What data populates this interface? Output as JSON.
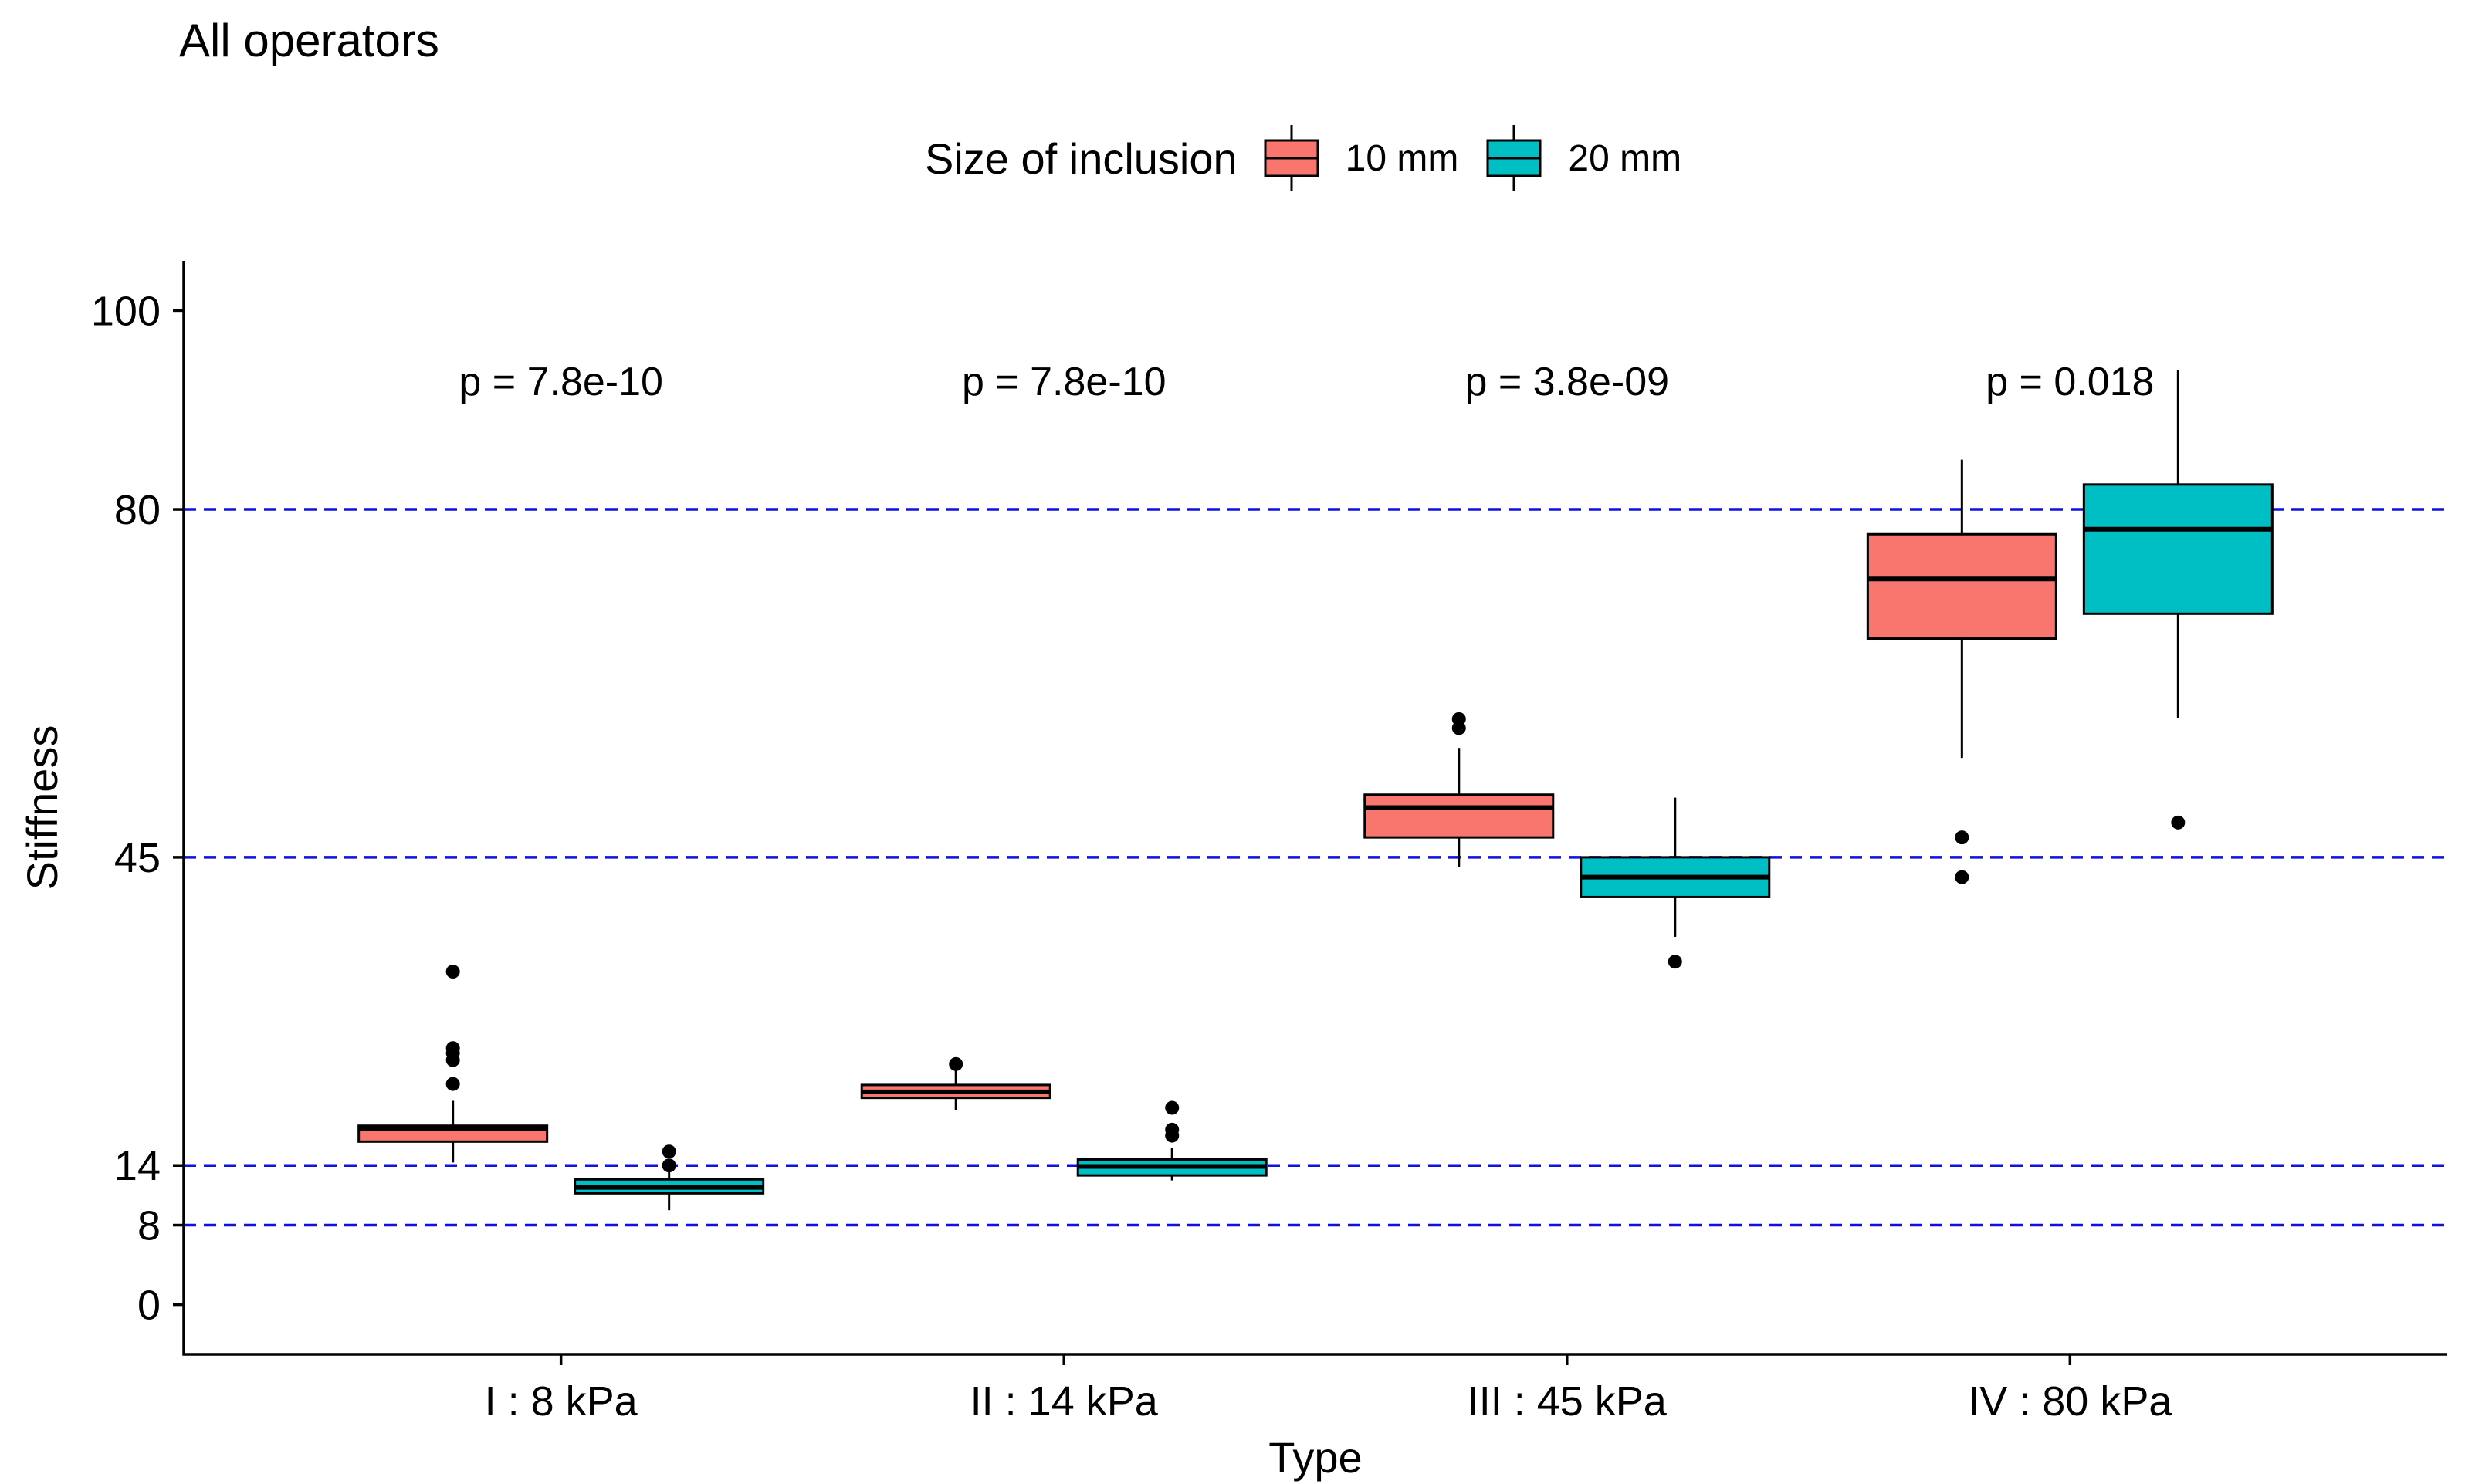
{
  "chart_data": {
    "type": "box",
    "title": "All operators",
    "xlabel": "Type",
    "ylabel": "Stiffness",
    "ylim": [
      -5,
      105
    ],
    "yticks": [
      0,
      8,
      14,
      45,
      80,
      100
    ],
    "reference_lines": [
      8,
      14,
      45,
      80
    ],
    "reference_line_color": "#1010e0",
    "categories": [
      "I : 8 kPa",
      "II : 14 kPa",
      "III : 45 kPa",
      "IV : 80  kPa"
    ],
    "p_values": [
      "p = 7.8e-10",
      "p = 7.8e-10",
      "p = 3.8e-09",
      "p = 0.018"
    ],
    "legend": {
      "title": "Size of inclusion",
      "placement": "top"
    },
    "series": [
      {
        "name": "10 mm",
        "color": "#f8766d",
        "boxes": [
          {
            "min": 14.3,
            "q1": 16.4,
            "median": 17.7,
            "q3": 18.0,
            "max": 20.5,
            "outliers": [
              22.2,
              24.6,
              25.3,
              25.8,
              33.5
            ]
          },
          {
            "min": 19.6,
            "q1": 20.8,
            "median": 21.4,
            "q3": 22.1,
            "max": 24.2,
            "outliers": [
              24.2
            ]
          },
          {
            "min": 44.0,
            "q1": 47.0,
            "median": 50.0,
            "q3": 51.3,
            "max": 56.0,
            "outliers": [
              58.0,
              58.9
            ]
          },
          {
            "min": 55.0,
            "q1": 67.0,
            "median": 73.0,
            "q3": 77.5,
            "max": 85.0,
            "outliers": [
              43.0,
              47.0
            ]
          }
        ]
      },
      {
        "name": "20 mm",
        "color": "#00bfc4",
        "boxes": [
          {
            "min": 9.5,
            "q1": 11.2,
            "median": 11.8,
            "q3": 12.6,
            "max": 14.0,
            "outliers": [
              14.0,
              15.4
            ]
          },
          {
            "min": 12.5,
            "q1": 13.0,
            "median": 13.9,
            "q3": 14.6,
            "max": 15.8,
            "outliers": [
              17.0,
              17.6,
              19.8
            ]
          },
          {
            "min": 37.0,
            "q1": 41.0,
            "median": 43.0,
            "q3": 45.0,
            "max": 51.0,
            "outliers": [
              34.5
            ]
          },
          {
            "min": 59.0,
            "q1": 69.5,
            "median": 78.0,
            "q3": 82.5,
            "max": 94.0,
            "outliers": [
              48.5
            ]
          }
        ]
      }
    ]
  }
}
